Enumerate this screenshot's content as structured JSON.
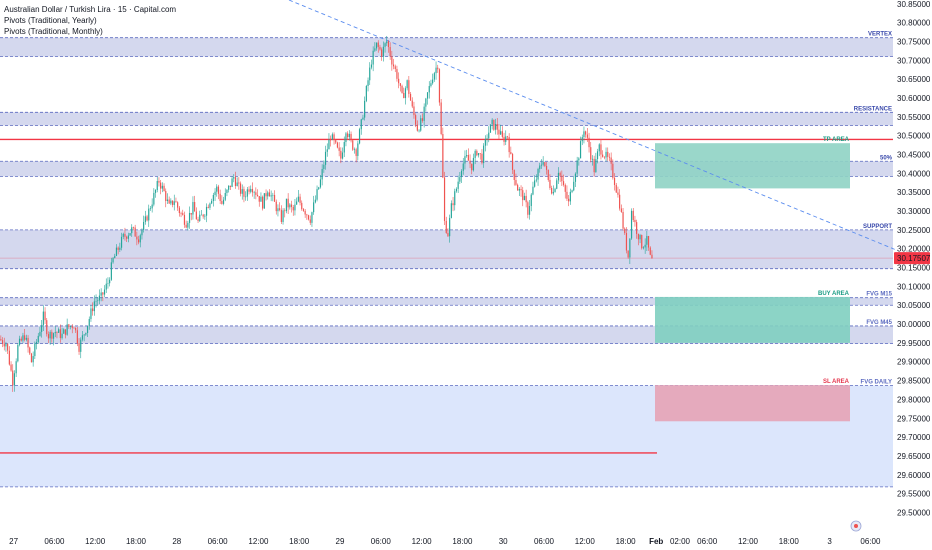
{
  "header": {
    "title": "Australian Dollar / Turkish Lira · 15 · Capital.com",
    "indicators": [
      "Pivots (Traditional, Yearly)",
      "Pivots (Traditional, Monthly)"
    ]
  },
  "colors": {
    "up": "#26a69a",
    "down": "#ef5350",
    "band": "#c5cbe8",
    "band_line": "#5c6bc0",
    "deep_band": "#d6e2fb",
    "tp_green": "#8fd3c4",
    "buy_green": "#7fcfc0",
    "sl_red": "#e6a3b6",
    "red_line": "#f23645",
    "trend_line": "#5b8def",
    "current_price_bg": "#f23645"
  },
  "chart_data": {
    "type": "candlestick",
    "title": "Australian Dollar / Turkish Lira · 15 · Capital.com",
    "y_axis": {
      "min": 29.48,
      "max": 30.86,
      "ticks": [
        "30.85000",
        "30.80000",
        "30.75000",
        "30.70000",
        "30.65000",
        "30.60000",
        "30.55000",
        "30.50000",
        "30.45000",
        "30.40000",
        "30.35000",
        "30.30000",
        "30.25000",
        "30.20000",
        "30.15000",
        "30.10000",
        "30.05000",
        "30.00000",
        "29.95000",
        "29.90000",
        "29.85000",
        "29.80000",
        "29.75000",
        "29.70000",
        "29.65000",
        "29.60000",
        "29.55000",
        "29.50000"
      ]
    },
    "x_axis": {
      "ticks": [
        {
          "label": "27",
          "index": 8
        },
        {
          "label": "06:00",
          "index": 32
        },
        {
          "label": "12:00",
          "index": 56
        },
        {
          "label": "18:00",
          "index": 80
        },
        {
          "label": "28",
          "index": 104
        },
        {
          "label": "06:00",
          "index": 128
        },
        {
          "label": "12:00",
          "index": 152
        },
        {
          "label": "18:00",
          "index": 176
        },
        {
          "label": "29",
          "index": 200
        },
        {
          "label": "06:00",
          "index": 224
        },
        {
          "label": "12:00",
          "index": 248
        },
        {
          "label": "18:00",
          "index": 272
        },
        {
          "label": "30",
          "index": 296
        },
        {
          "label": "06:00",
          "index": 320
        },
        {
          "label": "12:00",
          "index": 344
        },
        {
          "label": "18:00",
          "index": 368
        },
        {
          "label": "Feb",
          "index": 386
        },
        {
          "label": "02:00",
          "index": 400
        },
        {
          "label": "06:00",
          "index": 416
        },
        {
          "label": "12:00",
          "index": 440
        },
        {
          "label": "18:00",
          "index": 464
        },
        {
          "label": "3",
          "index": 488
        },
        {
          "label": "06:00",
          "index": 512
        }
      ]
    },
    "current_price": "30.17507",
    "current_price_value": 30.17507,
    "path_points": [
      [
        0,
        29.96
      ],
      [
        4,
        29.95
      ],
      [
        8,
        29.85
      ],
      [
        11,
        29.94
      ],
      [
        15,
        29.97
      ],
      [
        19,
        29.9
      ],
      [
        23,
        29.97
      ],
      [
        26,
        30.02
      ],
      [
        29,
        29.97
      ],
      [
        33,
        29.98
      ],
      [
        37,
        29.97
      ],
      [
        40,
        29.99
      ],
      [
        44,
        30.0
      ],
      [
        47,
        29.94
      ],
      [
        52,
        30.0
      ],
      [
        56,
        30.06
      ],
      [
        60,
        30.07
      ],
      [
        64,
        30.11
      ],
      [
        67,
        30.17
      ],
      [
        70,
        30.2
      ],
      [
        73,
        30.23
      ],
      [
        78,
        30.25
      ],
      [
        82,
        30.23
      ],
      [
        85,
        30.26
      ],
      [
        88,
        30.3
      ],
      [
        91,
        30.34
      ],
      [
        94,
        30.38
      ],
      [
        97,
        30.35
      ],
      [
        100,
        30.31
      ],
      [
        103,
        30.33
      ],
      [
        106,
        30.3
      ],
      [
        110,
        30.27
      ],
      [
        114,
        30.31
      ],
      [
        117,
        30.27
      ],
      [
        121,
        30.3
      ],
      [
        124,
        30.33
      ],
      [
        128,
        30.36
      ],
      [
        131,
        30.32
      ],
      [
        134,
        30.35
      ],
      [
        138,
        30.39
      ],
      [
        141,
        30.36
      ],
      [
        144,
        30.34
      ],
      [
        148,
        30.37
      ],
      [
        151,
        30.35
      ],
      [
        155,
        30.32
      ],
      [
        158,
        30.36
      ],
      [
        162,
        30.32
      ],
      [
        166,
        30.28
      ],
      [
        169,
        30.32
      ],
      [
        173,
        30.3
      ],
      [
        176,
        30.33
      ],
      [
        180,
        30.3
      ],
      [
        183,
        30.28
      ],
      [
        186,
        30.33
      ],
      [
        189,
        30.38
      ],
      [
        192,
        30.45
      ],
      [
        195,
        30.5
      ],
      [
        198,
        30.47
      ],
      [
        201,
        30.44
      ],
      [
        204,
        30.52
      ],
      [
        207,
        30.48
      ],
      [
        210,
        30.46
      ],
      [
        213,
        30.53
      ],
      [
        216,
        30.62
      ],
      [
        219,
        30.7
      ],
      [
        222,
        30.74
      ],
      [
        225,
        30.72
      ],
      [
        228,
        30.75
      ],
      [
        231,
        30.7
      ],
      [
        234,
        30.66
      ],
      [
        237,
        30.6
      ],
      [
        240,
        30.64
      ],
      [
        243,
        30.57
      ],
      [
        246,
        30.52
      ],
      [
        249,
        30.54
      ],
      [
        252,
        30.61
      ],
      [
        255,
        30.66
      ],
      [
        258,
        30.69
      ],
      [
        260,
        30.5
      ],
      [
        262,
        30.27
      ],
      [
        264,
        30.24
      ],
      [
        266,
        30.31
      ],
      [
        269,
        30.36
      ],
      [
        272,
        30.42
      ],
      [
        275,
        30.44
      ],
      [
        278,
        30.42
      ],
      [
        281,
        30.46
      ],
      [
        284,
        30.44
      ],
      [
        287,
        30.5
      ],
      [
        290,
        30.53
      ],
      [
        293,
        30.52
      ],
      [
        296,
        30.49
      ],
      [
        299,
        30.5
      ],
      [
        302,
        30.41
      ],
      [
        305,
        30.36
      ],
      [
        308,
        30.34
      ],
      [
        311,
        30.3
      ],
      [
        314,
        30.36
      ],
      [
        317,
        30.4
      ],
      [
        320,
        30.44
      ],
      [
        323,
        30.38
      ],
      [
        326,
        30.35
      ],
      [
        329,
        30.41
      ],
      [
        332,
        30.36
      ],
      [
        335,
        30.32
      ],
      [
        338,
        30.39
      ],
      [
        341,
        30.45
      ],
      [
        344,
        30.52
      ],
      [
        347,
        30.47
      ],
      [
        350,
        30.41
      ],
      [
        353,
        30.47
      ],
      [
        356,
        30.45
      ],
      [
        359,
        30.43
      ],
      [
        362,
        30.38
      ],
      [
        365,
        30.32
      ],
      [
        368,
        30.23
      ],
      [
        370,
        30.18
      ],
      [
        372,
        30.3
      ],
      [
        375,
        30.25
      ],
      [
        378,
        30.21
      ],
      [
        381,
        30.22
      ],
      [
        383,
        30.17507
      ]
    ],
    "annotations": {
      "bands": [
        {
          "top": 30.76,
          "bottom": 30.71,
          "label": "VERTEX"
        },
        {
          "top": 30.562,
          "bottom": 30.527,
          "label": "RESISTANCE"
        },
        {
          "top": 30.432,
          "bottom": 30.392,
          "label": "50%"
        },
        {
          "top": 30.25,
          "bottom": 30.147,
          "label": "SUPPORT"
        },
        {
          "top": 30.07,
          "bottom": 30.05,
          "label": "FVG M15"
        },
        {
          "top": 29.995,
          "bottom": 29.948,
          "label": "FVG M45"
        },
        {
          "top": 29.837,
          "bottom": 29.568,
          "label": "FVG DAILY",
          "style": "deep"
        }
      ],
      "boxes": [
        {
          "top": 30.48,
          "bottom": 30.36,
          "label": "TP AREA",
          "kind": "tp"
        },
        {
          "top": 30.072,
          "bottom": 29.95,
          "label": "BUY AREA",
          "kind": "buy"
        },
        {
          "top": 29.838,
          "bottom": 29.742,
          "label": "SL AREA",
          "kind": "sl"
        }
      ],
      "red_lines": [
        30.49,
        29.658
      ],
      "trend_line": {
        "x1": 170,
        "y1": 30.86,
        "x2": 528,
        "y2": 30.195
      }
    }
  }
}
